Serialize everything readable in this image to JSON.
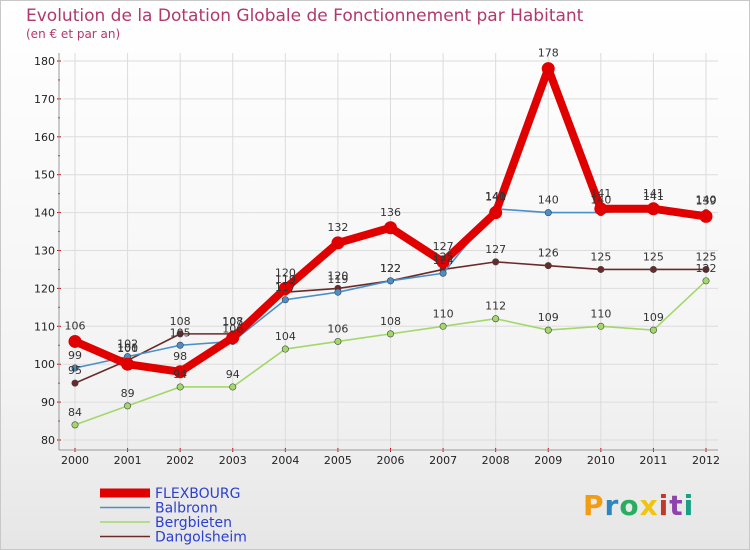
{
  "chart_data": {
    "type": "line",
    "title": "Evolution de la Dotation Globale de Fonctionnement par Habitant",
    "subtitle": "(en € et par an)",
    "xlabel": "",
    "ylabel": "",
    "categories": [
      "2000",
      "2001",
      "2002",
      "2003",
      "2004",
      "2005",
      "2006",
      "2007",
      "2008",
      "2009",
      "2010",
      "2011",
      "2012"
    ],
    "ylim": [
      80,
      180
    ],
    "yticks": [
      80,
      90,
      100,
      110,
      120,
      130,
      140,
      150,
      160,
      170,
      180
    ],
    "grid": true,
    "legend_position": "bottom-left",
    "series": [
      {
        "name": "Dangolsheim",
        "color": "#6b2a2a",
        "values": [
          95,
          101,
          108,
          108,
          119,
          120,
          122,
          125,
          127,
          126,
          125,
          125,
          125
        ]
      },
      {
        "name": "Bergbieten",
        "color": "#a2d86a",
        "values": [
          84,
          89,
          94,
          94,
          104,
          106,
          108,
          110,
          112,
          109,
          110,
          109,
          122
        ]
      },
      {
        "name": "Balbronn",
        "color": "#4a8fc8",
        "values": [
          99,
          102,
          105,
          106,
          117,
          119,
          122,
          124,
          141,
          140,
          140,
          141,
          140
        ]
      },
      {
        "name": "FLEXBOURG",
        "color": "#e00000",
        "values": [
          106,
          100,
          98,
          107,
          120,
          132,
          136,
          127,
          140,
          178,
          141,
          141,
          139
        ]
      }
    ],
    "legend_order": [
      "FLEXBOURG",
      "Balbronn",
      "Bergbieten",
      "Dangolsheim"
    ]
  },
  "logo": {
    "text": "Proxiti",
    "colors": [
      "#f39c12",
      "#2e86c1",
      "#27ae60",
      "#f1c40f",
      "#c0392b",
      "#8e44ad",
      "#16a085"
    ]
  }
}
